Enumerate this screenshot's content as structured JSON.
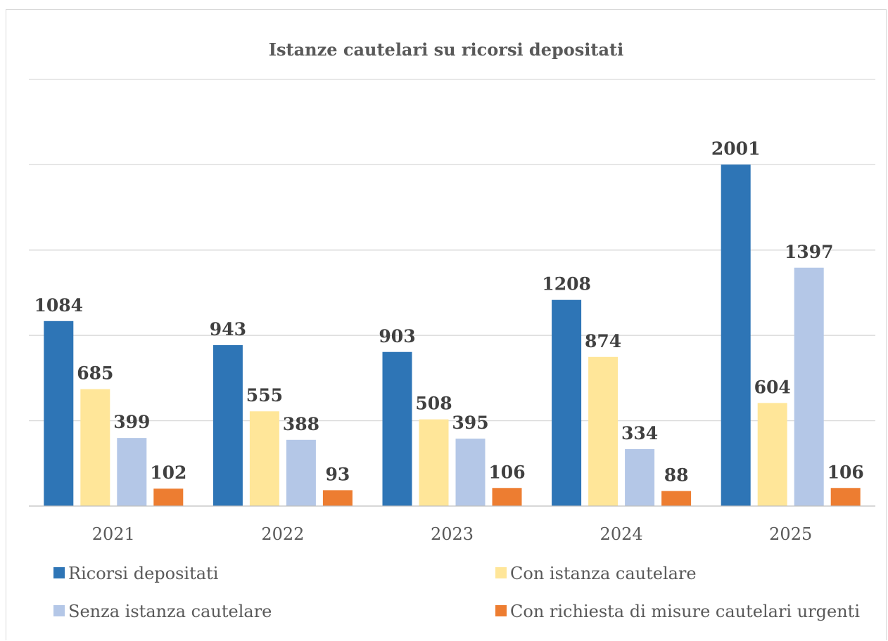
{
  "chart_data": {
    "type": "bar",
    "title": "Istanze cautelari su ricorsi depositati",
    "categories": [
      "2021",
      "2022",
      "2023",
      "2024",
      "2025"
    ],
    "series": [
      {
        "name": "Ricorsi depositati",
        "color": "#2e75b6",
        "values": [
          1084,
          943,
          903,
          1208,
          2001
        ]
      },
      {
        "name": "Con istanza cautelare",
        "color": "#ffe699",
        "values": [
          685,
          555,
          508,
          874,
          604
        ]
      },
      {
        "name": "Senza istanza cautelare",
        "color": "#b4c7e7",
        "values": [
          399,
          388,
          395,
          334,
          1397
        ]
      },
      {
        "name": "Con richiesta di misure cautelari urgenti",
        "color": "#ed7d31",
        "values": [
          102,
          93,
          106,
          88,
          106
        ]
      }
    ],
    "ylim": [
      0,
      2500
    ],
    "grid": true,
    "y_tick_labels_visible": false,
    "data_labels": true,
    "legend_position": "bottom",
    "xlabel": "",
    "ylabel": ""
  }
}
